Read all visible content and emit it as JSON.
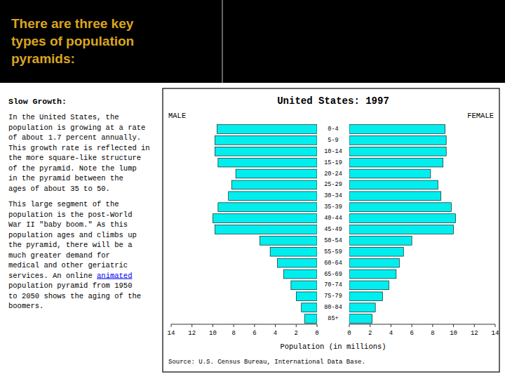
{
  "chart_data": {
    "type": "bar",
    "orientation": "horizontal",
    "title": "United States: 1997",
    "xlabel": "Population (in millions)",
    "categories": [
      "85+",
      "80-84",
      "75-79",
      "70-74",
      "65-69",
      "60-64",
      "55-59",
      "50-54",
      "45-49",
      "40-44",
      "35-39",
      "30-34",
      "25-29",
      "20-24",
      "15-19",
      "10-14",
      "5-9",
      "0-4"
    ],
    "series": [
      {
        "name": "MALE",
        "color": "#00EEEE",
        "values": [
          1.2,
          1.5,
          2.0,
          2.5,
          3.2,
          3.8,
          4.5,
          5.5,
          9.8,
          10.0,
          9.5,
          8.5,
          8.2,
          7.8,
          9.5,
          9.8,
          9.8,
          9.6
        ]
      },
      {
        "name": "FEMALE",
        "color": "#00EEEE",
        "values": [
          2.2,
          2.5,
          3.2,
          3.8,
          4.5,
          4.8,
          5.2,
          6.0,
          10.0,
          10.2,
          9.8,
          8.8,
          8.5,
          7.8,
          9.0,
          9.3,
          9.3,
          9.2
        ]
      }
    ],
    "xlim": [
      0,
      14
    ],
    "xticks": [
      0,
      2,
      4,
      6,
      8,
      10,
      12,
      14
    ],
    "grid": false,
    "annotations": [
      {
        "text": "There are three key\ntypes of population\npyramids:",
        "color": "#DAA520"
      },
      {
        "text": "Slow Growth:"
      },
      {
        "text": "In the United States, the\npopulation is growing at a rate\nof about 1.7 percent annually.\nThis growth rate is reflected in\nthe more square-like structure\nof the pyramid. Note the lump\nin the pyramid between the\nages of about 35 to 50."
      },
      {
        "text": "This large segment of the\npopulation is the post-World\nWar II \"baby boom.\" As this\npopulation ages and climbs up\nthe pyramid, there will be a\nmuch greater demand for\nmedical and other geriatric\nservices. An online "
      },
      {
        "text": "animated",
        "color": "#0000EE"
      },
      {
        "text": "population pyramid from 1950\nto 2050 shows the aging of the\nboomers."
      },
      {
        "text": "Source: U.S. Census Bureau, International Data Base."
      }
    ]
  }
}
